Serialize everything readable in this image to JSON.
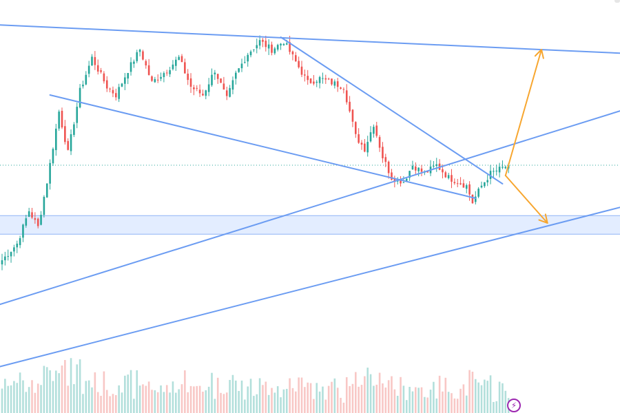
{
  "chart_data": {
    "type": "candlestick",
    "title": "",
    "xlabel": "",
    "ylabel": "",
    "grid": false,
    "ylim": [
      0,
      100
    ],
    "current_price_line": 60,
    "colors": {
      "up": "#26a69a",
      "down": "#ef5350",
      "up_volume": "#b2dfdb",
      "down_volume": "#f8c7c5",
      "trendline": "#6b9cf2",
      "zone_fill": "#e3edff",
      "zone_border": "#8fb4f5",
      "projection_arrow": "#f7a62f",
      "price_line": "#26a69a"
    },
    "support_zone": {
      "top": 47.8,
      "bottom": 43.3
    },
    "anchors": [
      {
        "i": 0,
        "p": 37
      },
      {
        "i": 5,
        "p": 41
      },
      {
        "i": 9,
        "p": 49
      },
      {
        "i": 12,
        "p": 45
      },
      {
        "i": 15,
        "p": 56
      },
      {
        "i": 19,
        "p": 73
      },
      {
        "i": 22,
        "p": 63
      },
      {
        "i": 26,
        "p": 78
      },
      {
        "i": 30,
        "p": 86
      },
      {
        "i": 35,
        "p": 79
      },
      {
        "i": 38,
        "p": 77
      },
      {
        "i": 42,
        "p": 83
      },
      {
        "i": 46,
        "p": 88
      },
      {
        "i": 50,
        "p": 80
      },
      {
        "i": 55,
        "p": 83
      },
      {
        "i": 59,
        "p": 86
      },
      {
        "i": 63,
        "p": 79
      },
      {
        "i": 67,
        "p": 77
      },
      {
        "i": 71,
        "p": 83
      },
      {
        "i": 75,
        "p": 76
      },
      {
        "i": 78,
        "p": 82
      },
      {
        "i": 82,
        "p": 87
      },
      {
        "i": 86,
        "p": 90
      },
      {
        "i": 90,
        "p": 88
      },
      {
        "i": 94,
        "p": 90
      },
      {
        "i": 98,
        "p": 85
      },
      {
        "i": 102,
        "p": 80
      },
      {
        "i": 106,
        "p": 81
      },
      {
        "i": 110,
        "p": 80
      },
      {
        "i": 114,
        "p": 79
      },
      {
        "i": 118,
        "p": 67
      },
      {
        "i": 121,
        "p": 64
      },
      {
        "i": 124,
        "p": 70
      },
      {
        "i": 127,
        "p": 62
      },
      {
        "i": 130,
        "p": 57
      },
      {
        "i": 134,
        "p": 56
      },
      {
        "i": 137,
        "p": 60
      },
      {
        "i": 141,
        "p": 58
      },
      {
        "i": 145,
        "p": 60
      },
      {
        "i": 149,
        "p": 57
      },
      {
        "i": 152,
        "p": 56
      },
      {
        "i": 155,
        "p": 55
      },
      {
        "i": 157,
        "p": 51
      },
      {
        "i": 160,
        "p": 55
      },
      {
        "i": 163,
        "p": 58
      },
      {
        "i": 166,
        "p": 59
      },
      {
        "i": 169,
        "p": 60
      }
    ],
    "trendlines": [
      {
        "name": "upper-resistance",
        "from": [
          -2,
          94
        ],
        "to": [
          210,
          87
        ]
      },
      {
        "name": "falling-resistance",
        "from": [
          93,
          91
        ],
        "to": [
          167,
          55.5
        ]
      },
      {
        "name": "falling-support",
        "from": [
          16,
          77
        ],
        "to": [
          158,
          52
        ]
      },
      {
        "name": "rising-trendline",
        "from": [
          -2,
          26
        ],
        "to": [
          210,
          74
        ]
      },
      {
        "name": "lower-rising-trendline",
        "from": [
          -2,
          11
        ],
        "to": [
          210,
          50.5
        ]
      }
    ],
    "projections": [
      {
        "name": "bullish-target",
        "from": [
          168,
          57.5
        ],
        "to": [
          180,
          88
        ]
      },
      {
        "name": "bearish-target",
        "from": [
          168,
          57.5
        ],
        "to": [
          182,
          46
        ]
      }
    ]
  }
}
